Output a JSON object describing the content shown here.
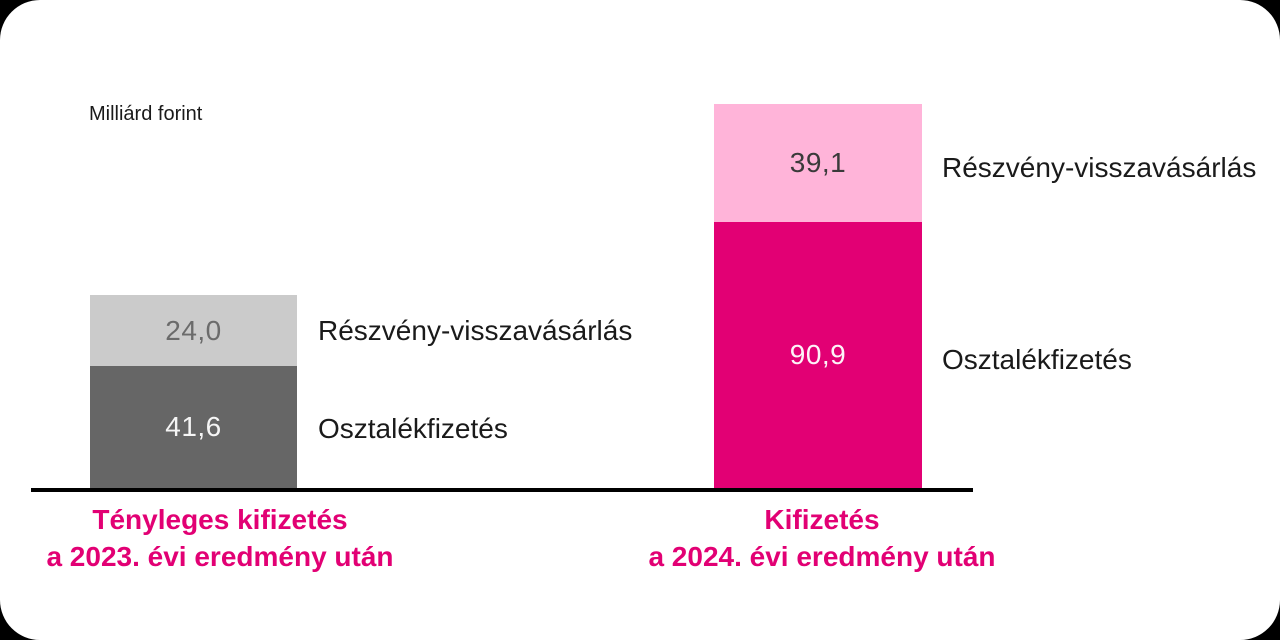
{
  "chart": {
    "unit_label": "Milliárd forint"
  },
  "colors": {
    "magenta": "#e20074",
    "light_pink": "#ffb4d9",
    "dark_gray": "#666666",
    "light_gray": "#cbcbcb",
    "axis_black": "#000000"
  },
  "chart_data": {
    "type": "bar",
    "stacked": true,
    "title": "",
    "unit": "Milliárd forint",
    "ylabel": "Milliárd forint",
    "categories": [
      "Tényleges kifizetés a 2023. évi eredmény után",
      "Kifizetés a 2024. évi eredmény után"
    ],
    "series": [
      {
        "name": "Osztalékfizetés",
        "values": [
          41.6,
          90.9
        ],
        "segment_colors": [
          "#666666",
          "#e20074"
        ]
      },
      {
        "name": "Részvény-visszavásárlás",
        "values": [
          24.0,
          39.1
        ],
        "segment_colors": [
          "#cbcbcb",
          "#ffb4d9"
        ]
      }
    ],
    "totals": [
      65.6,
      130.0
    ],
    "value_format": "comma-decimal",
    "grid": false,
    "legend_position": "labels-right-of-segments",
    "category_label_color": "#e20074"
  },
  "bars": [
    {
      "label_line1": "Tényleges kifizetés",
      "label_line2": "a 2023. évi eredmény után",
      "buyback": {
        "label": "Részvény-visszavásárlás",
        "value": "24,0"
      },
      "dividend": {
        "label": "Osztalékfizetés",
        "value": "41,6"
      }
    },
    {
      "label_line1": "Kifizetés",
      "label_line2": "a 2024. évi eredmény után",
      "buyback": {
        "label": "Részvény-visszavásárlás",
        "value": "39,1"
      },
      "dividend": {
        "label": "Osztalékfizetés",
        "value": "90,9"
      }
    }
  ]
}
